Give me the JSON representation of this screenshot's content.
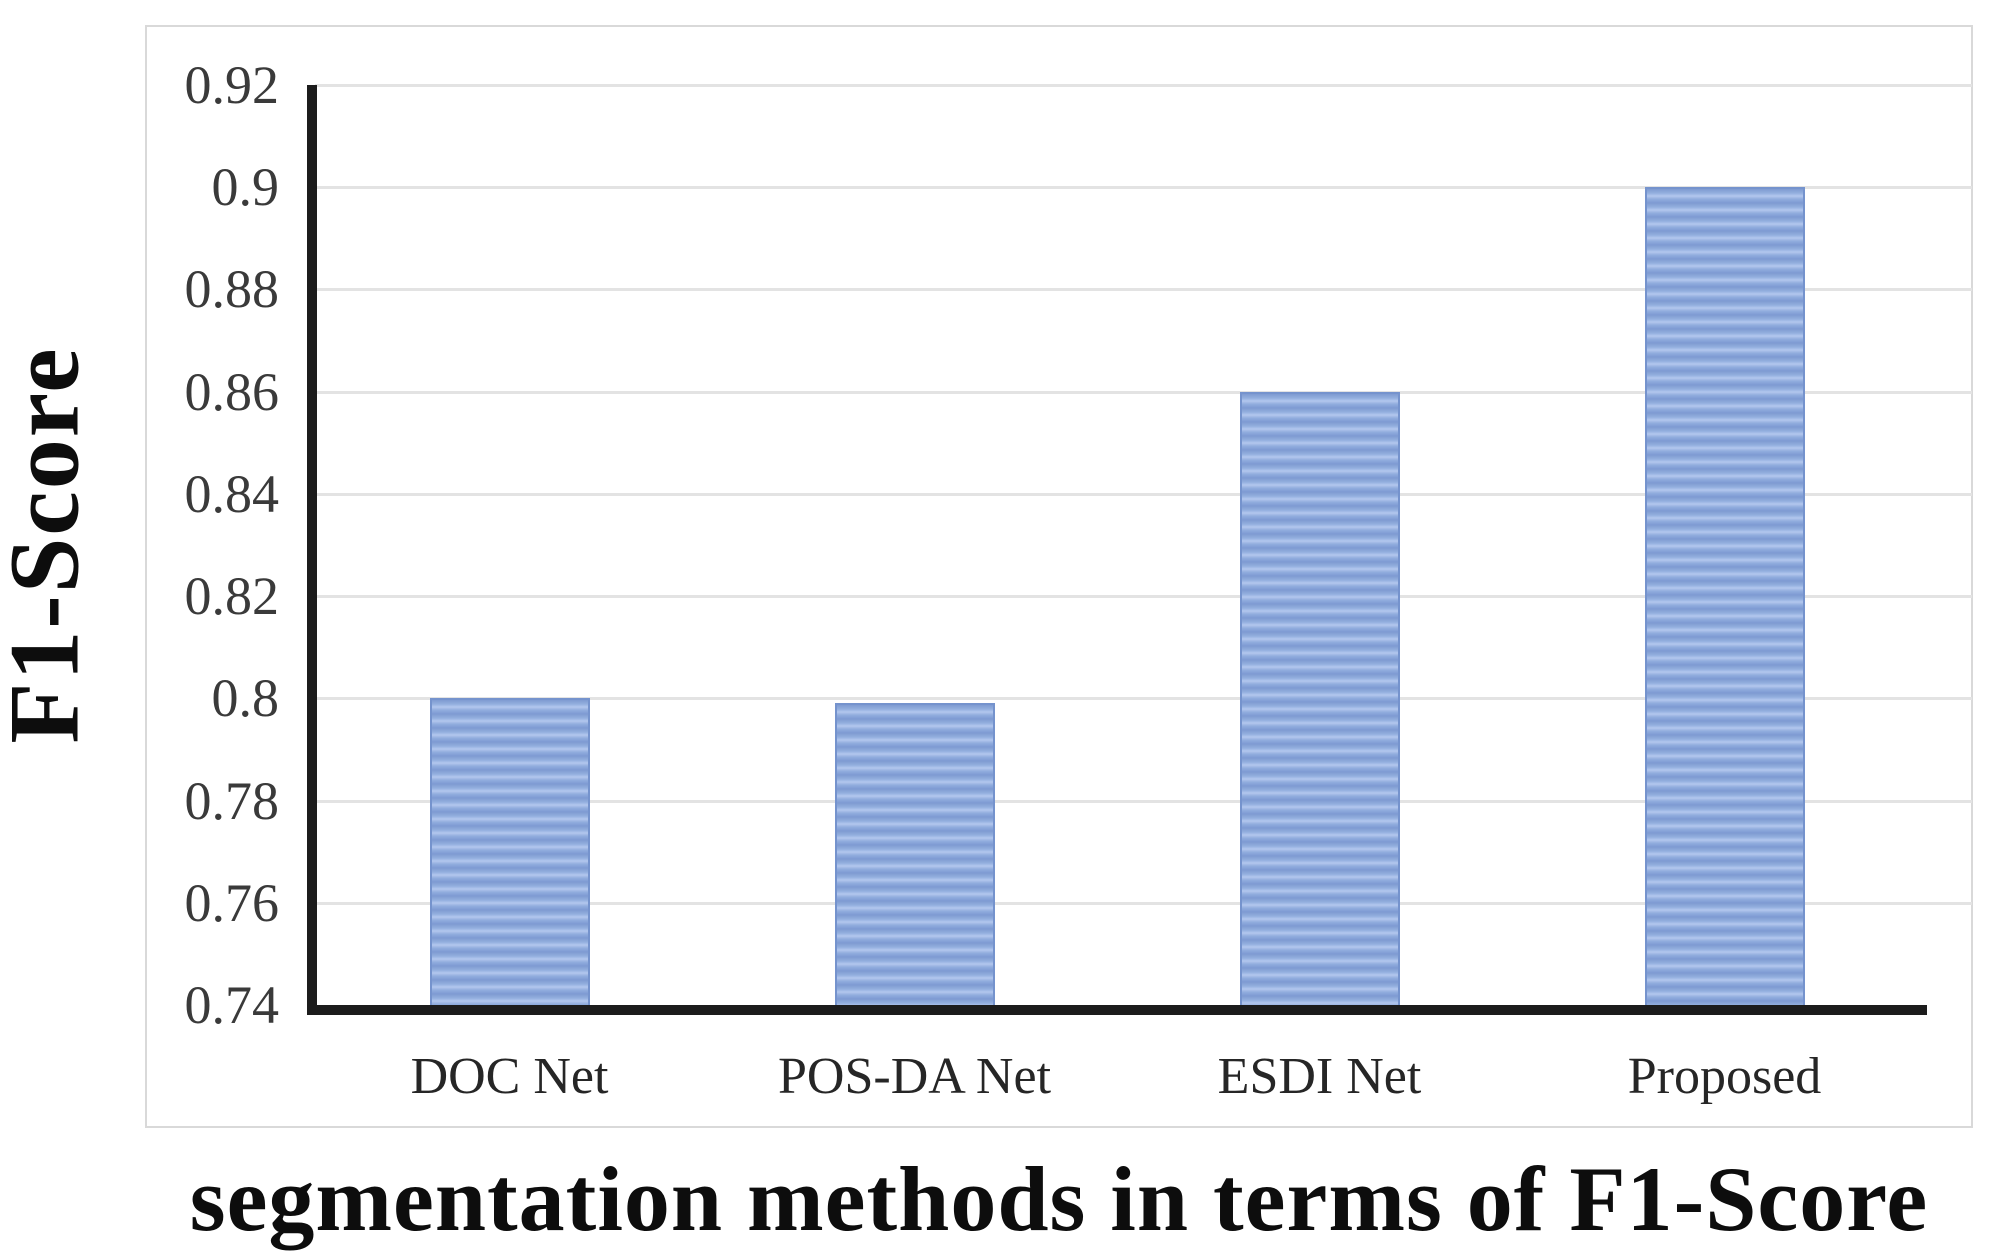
{
  "page": {
    "y_axis_title": "F1-Score",
    "caption": "segmentation methods in terms of F1-Score"
  },
  "chart_data": {
    "type": "bar",
    "title": "segmentation methods in terms of F1-Score",
    "title_position": "bottom",
    "ylabel": "F1-Score",
    "categories": [
      "DOC Net",
      "POS-DA Net",
      "ESDI Net",
      "Proposed"
    ],
    "values": [
      0.8,
      0.799,
      0.86,
      0.9
    ],
    "ylim": [
      0.74,
      0.92
    ],
    "ytick_step": 0.02,
    "yticks": [
      0.92,
      0.9,
      0.88,
      0.86,
      0.84,
      0.82,
      0.8,
      0.78,
      0.76,
      0.74
    ],
    "ytick_labels": [
      "0.92",
      "0.9",
      "0.88",
      "0.86",
      "0.84",
      "0.82",
      "0.8",
      "0.78",
      "0.76",
      "0.74"
    ],
    "grid": true,
    "legend": false,
    "bar_fill_style": "horizontal-stripes",
    "colors": {
      "bar_base": "#92aede",
      "bar_stripe_light": "#b3c7ee",
      "bar_stripe_dark": "#7e9ad2",
      "bar_border": "#7593cd",
      "axis": "#1c1c1c",
      "gridline": "#e3e3e3",
      "tick_text": "#3a3a3a",
      "label_text": "#262626",
      "title_text": "#0d0d0d",
      "panel_border": "#d9d9d9"
    }
  }
}
